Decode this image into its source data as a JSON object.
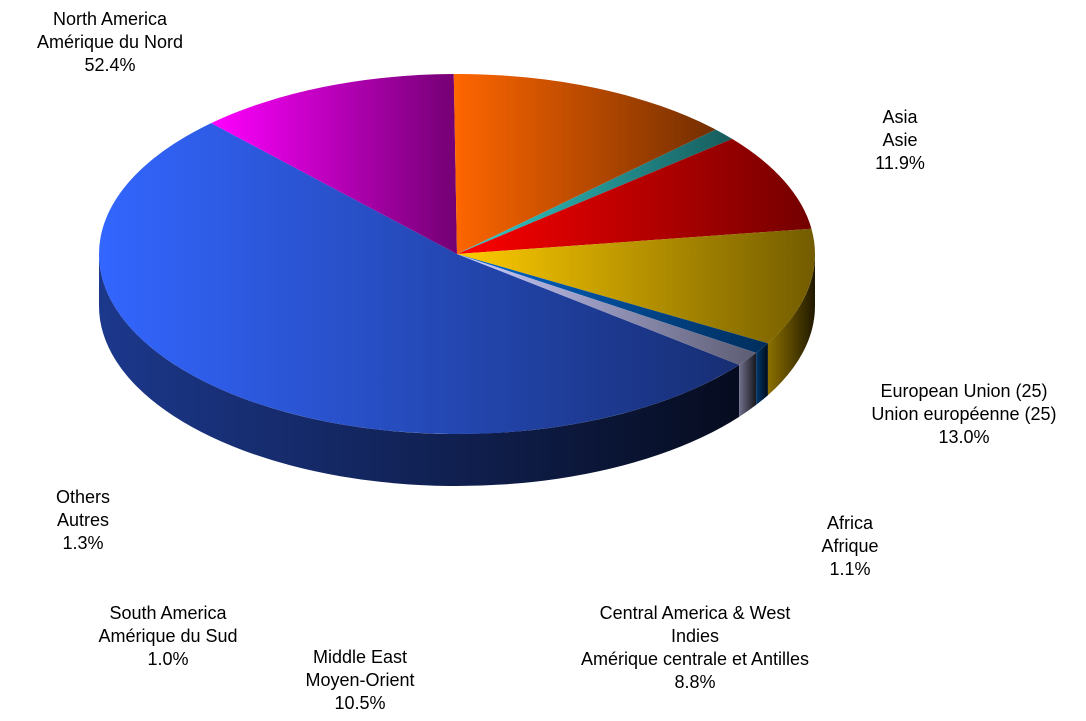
{
  "chart_data": {
    "type": "pie",
    "slices": [
      {
        "key": "north_america",
        "lines": [
          "North America",
          "Amérique du Nord"
        ],
        "pct_label": "52.4%",
        "value": 52.4,
        "color": "#3366ff"
      },
      {
        "key": "asia",
        "lines": [
          "Asia",
          "Asie"
        ],
        "pct_label": "11.9%",
        "value": 11.9,
        "color": "#ff00ff"
      },
      {
        "key": "european_union",
        "lines": [
          "European Union (25)",
          "Union européenne (25)"
        ],
        "pct_label": "13.0%",
        "value": 13.0,
        "color": "#ff6600"
      },
      {
        "key": "africa",
        "lines": [
          "Africa",
          "Afrique"
        ],
        "pct_label": "1.1%",
        "value": 1.1,
        "color": "#33cccc"
      },
      {
        "key": "central_america",
        "lines": [
          "Central America & West",
          "Indies",
          "Amérique centrale et Antilles"
        ],
        "pct_label": "8.8%",
        "value": 8.8,
        "color": "#ff0000"
      },
      {
        "key": "middle_east",
        "lines": [
          "Middle East",
          "Moyen-Orient"
        ],
        "pct_label": "10.5%",
        "value": 10.5,
        "color": "#ffcc00"
      },
      {
        "key": "south_america",
        "lines": [
          "South America",
          "Amérique du Sud"
        ],
        "pct_label": "1.0%",
        "value": 1.0,
        "color": "#0066cc"
      },
      {
        "key": "others",
        "lines": [
          "Others",
          "Autres"
        ],
        "pct_label": "1.3%",
        "value": 1.3,
        "color": "#ccccff"
      }
    ],
    "style": "3d-exploded-none"
  }
}
